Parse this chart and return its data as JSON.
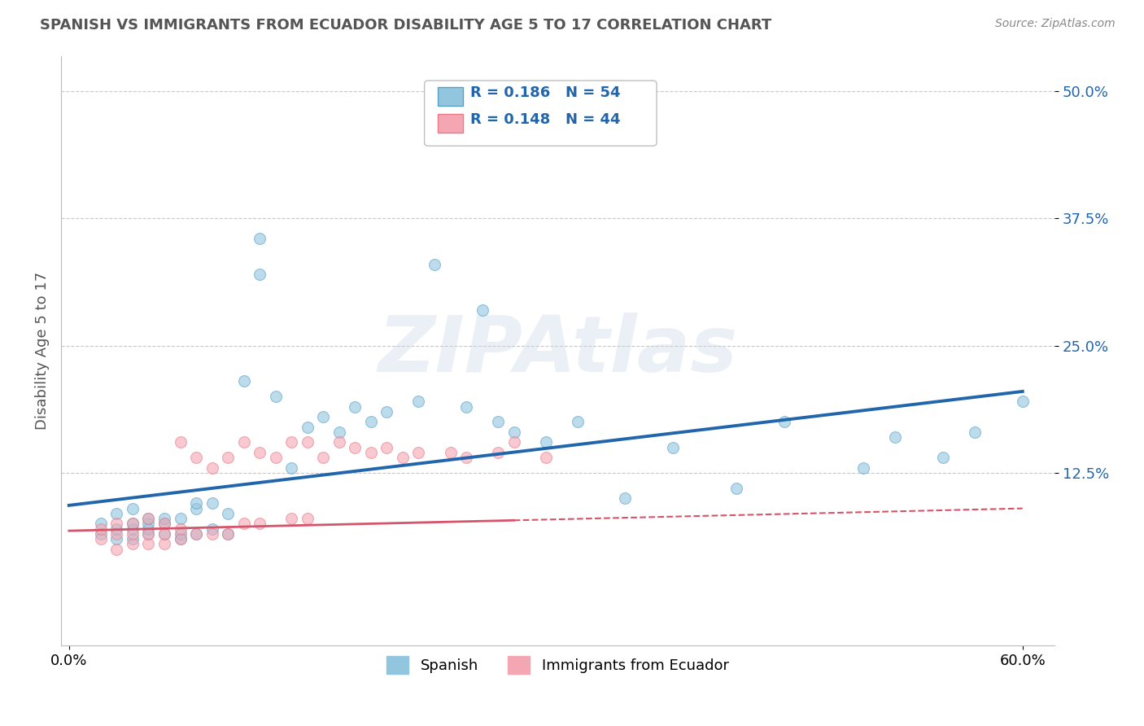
{
  "title": "SPANISH VS IMMIGRANTS FROM ECUADOR DISABILITY AGE 5 TO 17 CORRELATION CHART",
  "source": "Source: ZipAtlas.com",
  "ylabel": "Disability Age 5 to 17",
  "xlim": [
    -0.005,
    0.62
  ],
  "ylim": [
    -0.045,
    0.535
  ],
  "ytick_vals": [
    0.125,
    0.25,
    0.375,
    0.5
  ],
  "ytick_labels": [
    "12.5%",
    "25.0%",
    "37.5%",
    "50.0%"
  ],
  "xtick_vals": [
    0.0,
    0.6
  ],
  "xtick_labels": [
    "0.0%",
    "60.0%"
  ],
  "blue_color": "#92c5de",
  "pink_color": "#f4a6b2",
  "blue_scatter_edge": "#5a9fc9",
  "pink_scatter_edge": "#e87a8a",
  "blue_line_color": "#2166ac",
  "pink_line_color": "#d6546a",
  "background_color": "#ffffff",
  "grid_color": "#c8c8c8",
  "title_color": "#555555",
  "source_color": "#888888",
  "legend_label1": "Spanish",
  "legend_label2": "Immigrants from Ecuador",
  "blue_x": [
    0.02,
    0.02,
    0.03,
    0.03,
    0.03,
    0.04,
    0.04,
    0.04,
    0.04,
    0.05,
    0.05,
    0.05,
    0.05,
    0.06,
    0.06,
    0.06,
    0.07,
    0.07,
    0.07,
    0.08,
    0.08,
    0.08,
    0.09,
    0.09,
    0.1,
    0.1,
    0.11,
    0.12,
    0.12,
    0.13,
    0.14,
    0.15,
    0.16,
    0.17,
    0.18,
    0.19,
    0.2,
    0.22,
    0.23,
    0.25,
    0.26,
    0.27,
    0.28,
    0.3,
    0.32,
    0.35,
    0.38,
    0.42,
    0.45,
    0.5,
    0.52,
    0.55,
    0.57,
    0.6
  ],
  "blue_y": [
    0.065,
    0.075,
    0.06,
    0.07,
    0.085,
    0.06,
    0.07,
    0.075,
    0.09,
    0.065,
    0.07,
    0.075,
    0.08,
    0.065,
    0.075,
    0.08,
    0.06,
    0.065,
    0.08,
    0.065,
    0.09,
    0.095,
    0.07,
    0.095,
    0.065,
    0.085,
    0.215,
    0.32,
    0.355,
    0.2,
    0.13,
    0.17,
    0.18,
    0.165,
    0.19,
    0.175,
    0.185,
    0.195,
    0.33,
    0.19,
    0.285,
    0.175,
    0.165,
    0.155,
    0.175,
    0.1,
    0.15,
    0.11,
    0.175,
    0.13,
    0.16,
    0.14,
    0.165,
    0.195
  ],
  "pink_x": [
    0.02,
    0.02,
    0.03,
    0.03,
    0.03,
    0.04,
    0.04,
    0.04,
    0.05,
    0.05,
    0.05,
    0.06,
    0.06,
    0.06,
    0.07,
    0.07,
    0.07,
    0.08,
    0.08,
    0.09,
    0.09,
    0.1,
    0.1,
    0.11,
    0.11,
    0.12,
    0.12,
    0.13,
    0.14,
    0.14,
    0.15,
    0.15,
    0.16,
    0.17,
    0.18,
    0.19,
    0.2,
    0.21,
    0.22,
    0.24,
    0.25,
    0.27,
    0.28,
    0.3
  ],
  "pink_y": [
    0.06,
    0.07,
    0.05,
    0.065,
    0.075,
    0.055,
    0.065,
    0.075,
    0.055,
    0.065,
    0.08,
    0.055,
    0.065,
    0.075,
    0.06,
    0.07,
    0.155,
    0.065,
    0.14,
    0.065,
    0.13,
    0.065,
    0.14,
    0.075,
    0.155,
    0.075,
    0.145,
    0.14,
    0.08,
    0.155,
    0.08,
    0.155,
    0.14,
    0.155,
    0.15,
    0.145,
    0.15,
    0.14,
    0.145,
    0.145,
    0.14,
    0.145,
    0.155,
    0.14
  ],
  "blue_trend_x0": 0.0,
  "blue_trend_x1": 0.6,
  "blue_trend_y0": 0.093,
  "blue_trend_y1": 0.205,
  "pink_trend_x0": 0.0,
  "pink_trend_x1": 0.6,
  "pink_trend_y0": 0.068,
  "pink_trend_y1": 0.09,
  "marker_size": 100,
  "marker_alpha": 0.6,
  "watermark_text": "ZIPAtlas",
  "watermark_color": "#c8d4e8",
  "watermark_alpha": 0.35
}
